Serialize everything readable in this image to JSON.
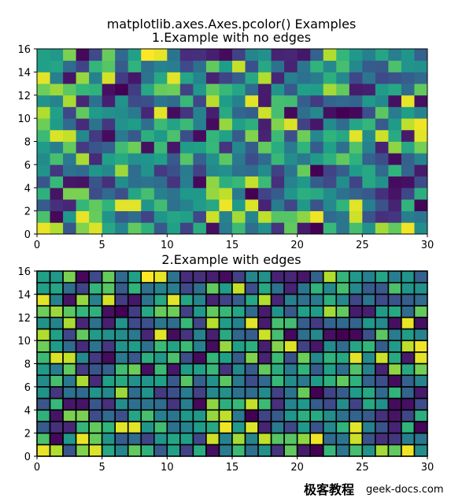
{
  "figure": {
    "suptitle": "matplotlib.axes.Axes.pcolor() Examples"
  },
  "watermark": {
    "cn": "极客教程",
    "en": "geek-docs.com"
  },
  "chart_data": [
    {
      "type": "heatmap",
      "title": "1.Example with no edges",
      "xlim": [
        0,
        30
      ],
      "ylim": [
        0,
        16
      ],
      "xticks": [
        0,
        5,
        10,
        15,
        20,
        25,
        30
      ],
      "yticks": [
        0,
        2,
        4,
        6,
        8,
        10,
        12,
        14,
        16
      ],
      "colormap": "viridis",
      "edgecolor": "none",
      "grid": false,
      "values": [
        [
          0.93,
          0.85,
          0.27,
          0.78,
          0.91,
          0.58,
          0.45,
          0.73,
          0.62,
          0.28,
          0.55,
          0.21,
          0.6,
          0.06,
          0.41,
          0.66,
          0.36,
          0.49,
          0.16,
          0.73,
          0.09,
          0.02,
          0.65,
          0.39,
          0.68,
          0.5,
          0.83,
          0.73,
          0.94,
          0.48
        ],
        [
          0.69,
          0.04,
          0.52,
          0.93,
          0.74,
          0.5,
          0.29,
          0.35,
          0.21,
          0.51,
          0.57,
          0.55,
          0.22,
          0.89,
          0.44,
          0.83,
          0.45,
          0.87,
          0.71,
          0.71,
          0.8,
          0.94,
          0.34,
          0.39,
          0.89,
          0.26,
          0.15,
          0.17,
          0.42,
          0.39
        ],
        [
          0.29,
          0.15,
          0.12,
          0.64,
          0.73,
          0.63,
          0.92,
          0.92,
          0.51,
          0.67,
          0.37,
          0.44,
          0.53,
          0.58,
          0.94,
          0.53,
          0.91,
          0.11,
          0.41,
          0.22,
          0.52,
          0.26,
          0.46,
          0.63,
          0.92,
          0.43,
          0.26,
          0.11,
          0.63,
          0.03
        ],
        [
          0.62,
          0.07,
          0.77,
          0.77,
          0.24,
          0.34,
          0.25,
          0.57,
          0.68,
          0.43,
          0.38,
          0.52,
          0.52,
          0.81,
          0.87,
          0.4,
          0.02,
          0.21,
          0.29,
          0.51,
          0.61,
          0.59,
          0.48,
          0.37,
          0.32,
          0.28,
          0.15,
          0.07,
          0.22,
          0.61
        ],
        [
          0.27,
          0.65,
          0.08,
          0.07,
          0.27,
          0.15,
          0.48,
          0.36,
          0.38,
          0.35,
          0.16,
          0.42,
          0.04,
          0.8,
          0.61,
          0.65,
          0.88,
          0.66,
          0.15,
          0.44,
          0.52,
          0.29,
          0.23,
          0.48,
          0.21,
          0.58,
          0.49,
          0.05,
          0.06,
          0.24
        ],
        [
          0.5,
          0.17,
          0.37,
          0.34,
          0.51,
          0.46,
          0.82,
          0.35,
          0.5,
          0.18,
          0.25,
          0.41,
          0.2,
          0.46,
          0.49,
          0.37,
          0.35,
          0.47,
          0.2,
          0.38,
          0.74,
          0.02,
          0.21,
          0.3,
          0.53,
          0.58,
          0.34,
          0.63,
          0.32,
          0.09
        ],
        [
          0.47,
          0.68,
          0.4,
          0.84,
          0.13,
          0.55,
          0.59,
          0.49,
          0.51,
          0.55,
          0.28,
          0.71,
          0.31,
          0.49,
          0.72,
          0.4,
          0.24,
          0.34,
          0.65,
          0.48,
          0.4,
          0.53,
          0.62,
          0.73,
          0.62,
          0.31,
          0.24,
          0.05,
          0.31,
          0.44
        ],
        [
          0.53,
          0.42,
          0.73,
          0.18,
          0.27,
          0.31,
          0.67,
          0.75,
          0.06,
          0.66,
          0.08,
          0.54,
          0.55,
          0.65,
          0.16,
          0.46,
          0.29,
          0.73,
          0.6,
          0.41,
          0.63,
          0.29,
          0.55,
          0.36,
          0.7,
          0.43,
          0.11,
          0.8,
          0.58,
          0.76
        ],
        [
          0.66,
          0.91,
          0.88,
          0.46,
          0.18,
          0.05,
          0.4,
          0.28,
          0.61,
          0.52,
          0.69,
          0.24,
          0.05,
          0.64,
          0.55,
          0.29,
          0.78,
          0.11,
          0.66,
          0.25,
          0.75,
          0.46,
          0.63,
          0.58,
          0.92,
          0.47,
          0.89,
          0.59,
          0.09,
          0.92
        ],
        [
          0.75,
          0.53,
          0.34,
          0.13,
          0.38,
          0.17,
          0.5,
          0.54,
          0.36,
          0.66,
          0.56,
          0.66,
          0.43,
          0.05,
          0.81,
          0.55,
          0.61,
          0.1,
          0.78,
          0.91,
          0.2,
          0.08,
          0.47,
          0.35,
          0.57,
          0.64,
          0.29,
          0.53,
          0.87,
          0.94
        ],
        [
          0.85,
          0.55,
          0.22,
          0.73,
          0.53,
          0.49,
          0.48,
          0.4,
          0.12,
          0.92,
          0.05,
          0.16,
          0.44,
          0.1,
          0.59,
          0.33,
          0.3,
          0.89,
          0.68,
          0.04,
          0.36,
          0.46,
          0.06,
          0.02,
          0.04,
          0.25,
          0.72,
          0.41,
          0.54,
          0.44
        ],
        [
          0.5,
          0.44,
          0.84,
          0.12,
          0.37,
          0.1,
          0.5,
          0.23,
          0.25,
          0.39,
          0.35,
          0.65,
          0.22,
          0.86,
          0.54,
          0.43,
          0.92,
          0.09,
          0.68,
          0.67,
          0.3,
          0.18,
          0.32,
          0.34,
          0.32,
          0.52,
          0.46,
          0.06,
          0.93,
          0.06
        ],
        [
          0.75,
          0.82,
          0.72,
          0.64,
          0.62,
          0.06,
          0.02,
          0.19,
          0.58,
          0.74,
          0.75,
          0.2,
          0.52,
          0.73,
          0.65,
          0.57,
          0.34,
          0.09,
          0.5,
          0.28,
          0.55,
          0.54,
          0.83,
          0.73,
          0.09,
          0.1,
          0.53,
          0.58,
          0.35,
          0.73
        ],
        [
          0.92,
          0.43,
          0.07,
          0.81,
          0.43,
          0.9,
          0.19,
          0.08,
          0.38,
          0.58,
          0.92,
          0.57,
          0.45,
          0.11,
          0.21,
          0.3,
          0.58,
          0.85,
          0.12,
          0.43,
          0.37,
          0.41,
          0.61,
          0.46,
          0.22,
          0.39,
          0.23,
          0.26,
          0.3,
          0.34
        ],
        [
          0.55,
          0.57,
          0.35,
          0.21,
          0.64,
          0.71,
          0.29,
          0.63,
          0.36,
          0.44,
          0.42,
          0.23,
          0.36,
          0.73,
          0.54,
          0.88,
          0.25,
          0.58,
          0.37,
          0.11,
          0.39,
          0.63,
          0.46,
          0.68,
          0.46,
          0.29,
          0.28,
          0.69,
          0.51,
          0.49
        ],
        [
          0.55,
          0.52,
          0.77,
          0.04,
          0.23,
          0.74,
          0.34,
          0.55,
          0.96,
          0.93,
          0.38,
          0.14,
          0.15,
          0.1,
          0.05,
          0.2,
          0.45,
          0.49,
          0.11,
          0.12,
          0.08,
          0.31,
          0.85,
          0.64,
          0.52,
          0.43,
          0.57,
          0.42,
          0.51,
          0.31
        ]
      ]
    },
    {
      "type": "heatmap",
      "title": "2.Example with edges",
      "xlim": [
        0,
        30
      ],
      "ylim": [
        0,
        16
      ],
      "xticks": [
        0,
        5,
        10,
        15,
        20,
        25,
        30
      ],
      "yticks": [
        0,
        2,
        4,
        6,
        8,
        10,
        12,
        14,
        16
      ],
      "colormap": "viridis",
      "edgecolor": "#000000",
      "grid": false,
      "same_values_as": 0
    }
  ]
}
